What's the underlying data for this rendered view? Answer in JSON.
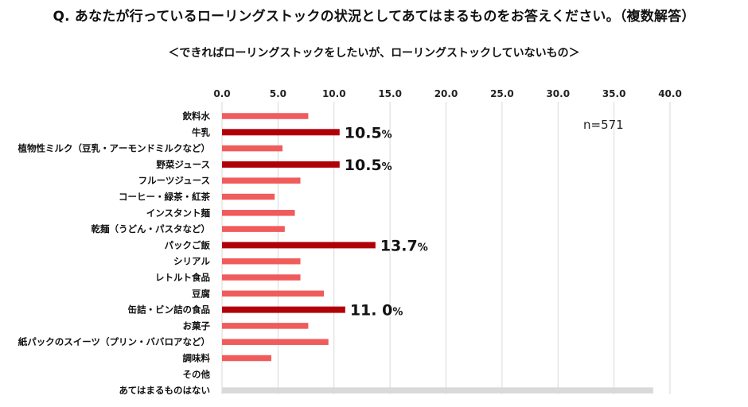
{
  "title": "Q. あなたが行っているローリングストックの状況としてあてはまるものをお答えください。（複数解答）",
  "subtitle": "＜できればローリングストックをしたいが、ローリングストックしていないもの＞",
  "sample_label": "n=571",
  "colors": {
    "normal": "#f05b5b",
    "highlight": "#b00008",
    "gray": "#d9d9d9",
    "grid": "#d9d9d9"
  },
  "chart_data": {
    "type": "bar",
    "orientation": "horizontal",
    "xlim": [
      0,
      40
    ],
    "xticks": [
      "0.0",
      "5.0",
      "10.0",
      "15.0",
      "20.0",
      "25.0",
      "30.0",
      "35.0",
      "40.0"
    ],
    "axis_position": "top",
    "grid": true,
    "categories": [
      "飲料水",
      "牛乳",
      "植物性ミルク（豆乳・アーモンドミルクなど）",
      "野菜ジュース",
      "フルーツジュース",
      "コーヒー・緑茶・紅茶",
      "インスタント麺",
      "乾麺（うどん・パスタなど）",
      "パックご飯",
      "シリアル",
      "レトルト食品",
      "豆腐",
      "缶詰・ビン詰の食品",
      "お菓子",
      "紙パックのスイーツ（プリン・ババロアなど）",
      "調味料",
      "その他",
      "あてはまるものはない"
    ],
    "values": [
      7.7,
      10.5,
      5.4,
      10.5,
      7.0,
      4.7,
      6.5,
      5.6,
      13.7,
      7.0,
      7.0,
      9.1,
      11.0,
      7.7,
      9.5,
      4.4,
      0.0,
      38.5
    ],
    "styles": [
      "normal",
      "highlight",
      "normal",
      "highlight",
      "normal",
      "normal",
      "normal",
      "normal",
      "highlight",
      "normal",
      "normal",
      "normal",
      "highlight",
      "normal",
      "normal",
      "normal",
      "normal",
      "gray"
    ],
    "annotations": [
      {
        "index": 1,
        "value": "10.5",
        "unit": "%"
      },
      {
        "index": 3,
        "value": "10.5",
        "unit": "%"
      },
      {
        "index": 8,
        "value": "13.7",
        "unit": "%"
      },
      {
        "index": 12,
        "value": "11. 0",
        "unit": "%"
      }
    ]
  }
}
